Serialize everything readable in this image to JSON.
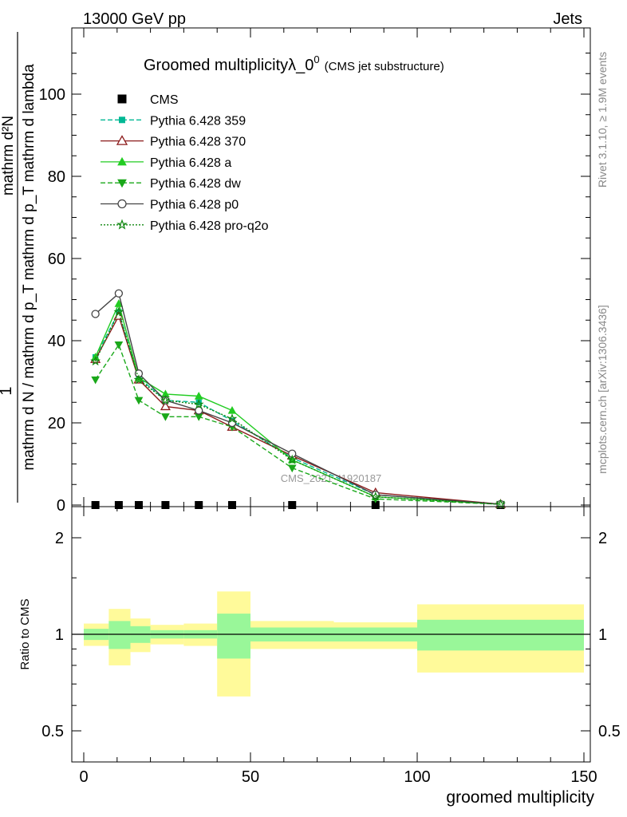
{
  "header": {
    "left": "13000 GeV pp",
    "right": "Jets"
  },
  "side_labels": {
    "rivet": "Rivet 3.1.10, ≥ 1.9M events",
    "mcplots": "mcplots.cern.ch [arXiv:1306.3436]"
  },
  "watermark": "CMS_2021_I1920187",
  "chart_data": [
    {
      "type": "line",
      "title": "Groomed multiplicityλ_0",
      "title_sup": "0",
      "subtitle": "(CMS jet substructure)",
      "xlabel": "groomed multiplicity",
      "ylabel_numerator": "1",
      "ylabel_denominator": "mathrm d N / mathrm d p_T mathrm d p_T mathrm d lambda",
      "ylabel_top": "mathrm d²N",
      "xlim": [
        -4,
        150
      ],
      "ylim": [
        0,
        115
      ],
      "x_ticks": [
        0,
        50,
        100,
        150
      ],
      "y_ticks": [
        20,
        40,
        60,
        80,
        100
      ],
      "y_zero_label": "0",
      "legend_position": "top-left",
      "series": [
        {
          "name": "CMS",
          "color": "#000000",
          "marker": "square",
          "dash": "none",
          "x": [
            3.5,
            10.5,
            16.5,
            24.5,
            34.5,
            44.5,
            62.5,
            87.5,
            125
          ],
          "y": [
            0,
            0,
            0,
            0,
            0,
            0,
            0,
            0,
            0
          ]
        },
        {
          "name": "Pythia 6.428 359",
          "color": "#00b894",
          "marker": "square-small",
          "dash": "6,3",
          "x": [
            3.5,
            10.5,
            16.5,
            24.5,
            34.5,
            44.5,
            62.5,
            87.5,
            125
          ],
          "y": [
            36,
            47,
            31,
            25.5,
            25,
            20.5,
            11.5,
            2.5,
            0.2
          ]
        },
        {
          "name": "Pythia 6.428 370",
          "color": "#8b1a1a",
          "marker": "triangle-open",
          "dash": "none",
          "x": [
            3.5,
            10.5,
            16.5,
            24.5,
            34.5,
            44.5,
            62.5,
            87.5,
            125
          ],
          "y": [
            35.5,
            46,
            30.5,
            24,
            23,
            19,
            12,
            3,
            0.2
          ]
        },
        {
          "name": "Pythia 6.428 a",
          "color": "#22cc22",
          "marker": "triangle",
          "dash": "none",
          "x": [
            3.5,
            10.5,
            16.5,
            24.5,
            34.5,
            44.5,
            62.5,
            87.5,
            125
          ],
          "y": [
            36,
            49,
            31,
            27,
            26.5,
            23,
            11,
            2,
            0.2
          ]
        },
        {
          "name": "Pythia 6.428 dw",
          "color": "#1aa81a",
          "marker": "triangle-down",
          "dash": "6,3",
          "x": [
            3.5,
            10.5,
            16.5,
            24.5,
            34.5,
            44.5,
            62.5,
            87.5,
            125
          ],
          "y": [
            30.5,
            39,
            25.5,
            21.5,
            21.5,
            19,
            9,
            1.5,
            0.2
          ]
        },
        {
          "name": "Pythia 6.428 p0",
          "color": "#444444",
          "marker": "circle-open",
          "dash": "none",
          "x": [
            3.5,
            10.5,
            16.5,
            24.5,
            34.5,
            44.5,
            62.5,
            87.5,
            125
          ],
          "y": [
            46.5,
            51.5,
            32,
            25.5,
            23,
            20,
            12.5,
            2.5,
            0.2
          ]
        },
        {
          "name": "Pythia 6.428 pro-q2o",
          "color": "#118811",
          "marker": "star",
          "dash": "2,2",
          "x": [
            3.5,
            10.5,
            16.5,
            24.5,
            34.5,
            44.5,
            62.5,
            87.5,
            125
          ],
          "y": [
            35,
            47,
            30.5,
            25.5,
            24.5,
            21,
            11,
            2,
            0.2
          ]
        }
      ]
    },
    {
      "type": "area",
      "ylabel": "Ratio to CMS",
      "xlim": [
        -4,
        150
      ],
      "ylim": [
        0.35,
        2.3
      ],
      "x_ticks": [
        0,
        50,
        100,
        150
      ],
      "y_ticks": [
        0.5,
        1,
        2
      ],
      "y_tick_labels": [
        "0.5",
        "1",
        "2"
      ],
      "reference_line": 1,
      "band_colors": {
        "inner": "#99f799",
        "outer": "#fffa9a"
      },
      "bins": [
        {
          "x0": 0,
          "x1": 7.5,
          "in_lo": 0.96,
          "in_hi": 1.04,
          "out_lo": 0.92,
          "out_hi": 1.08
        },
        {
          "x0": 7.5,
          "x1": 14,
          "in_lo": 0.9,
          "in_hi": 1.1,
          "out_lo": 0.8,
          "out_hi": 1.2
        },
        {
          "x0": 14,
          "x1": 20,
          "in_lo": 0.94,
          "in_hi": 1.06,
          "out_lo": 0.88,
          "out_hi": 1.12
        },
        {
          "x0": 20,
          "x1": 30,
          "in_lo": 0.97,
          "in_hi": 1.03,
          "out_lo": 0.93,
          "out_hi": 1.07
        },
        {
          "x0": 30,
          "x1": 40,
          "in_lo": 0.97,
          "in_hi": 1.03,
          "out_lo": 0.92,
          "out_hi": 1.08
        },
        {
          "x0": 40,
          "x1": 50,
          "in_lo": 0.84,
          "in_hi": 1.16,
          "out_lo": 0.64,
          "out_hi": 1.36
        },
        {
          "x0": 50,
          "x1": 75,
          "in_lo": 0.95,
          "in_hi": 1.05,
          "out_lo": 0.9,
          "out_hi": 1.1
        },
        {
          "x0": 75,
          "x1": 100,
          "in_lo": 0.95,
          "in_hi": 1.05,
          "out_lo": 0.9,
          "out_hi": 1.09
        },
        {
          "x0": 100,
          "x1": 150,
          "in_lo": 0.89,
          "in_hi": 1.11,
          "out_lo": 0.76,
          "out_hi": 1.24
        }
      ]
    }
  ]
}
